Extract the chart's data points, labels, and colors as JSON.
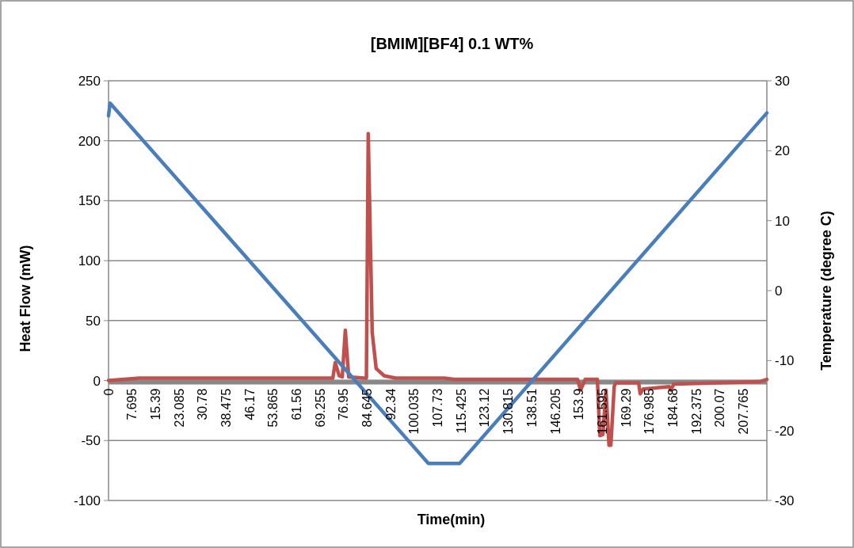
{
  "chart_data": {
    "type": "line",
    "title": "[BMIM][BF4] 0.1 WT%",
    "xlabel": "Time(min)",
    "ylabel": "Heat Flow (mW)",
    "y2label": "Temperature (degree C)",
    "xlim": [
      0,
      215.46
    ],
    "xticks": [
      0,
      7.695,
      15.39,
      23.085,
      30.78,
      38.475,
      46.17,
      53.865,
      61.56,
      69.255,
      76.95,
      84.645,
      92.34,
      100.035,
      107.73,
      115.425,
      123.12,
      130.815,
      138.51,
      146.205,
      153.9,
      161.595,
      169.29,
      176.985,
      184.68,
      192.375,
      200.07,
      207.765
    ],
    "ylim": [
      -100,
      250
    ],
    "yticks": [
      -100,
      -50,
      0,
      50,
      100,
      150,
      200,
      250
    ],
    "y2lim": [
      -30,
      30
    ],
    "y2ticks": [
      -30,
      -20,
      -10,
      0,
      10,
      20,
      30
    ],
    "grid": "y",
    "marker": "none",
    "line_style": "solid",
    "series": [
      {
        "color": "#c0504d",
        "x": [
          0,
          5,
          10,
          40,
          73.4,
          74.2,
          75.5,
          76.5,
          77.5,
          78.6,
          83.7,
          84.4,
          85.0,
          86.3,
          87.6,
          90.2,
          94,
          110,
          113,
          130,
          153.5,
          154.5,
          156,
          160,
          160.8,
          161.8,
          162.8,
          163.8,
          164.4,
          165.5,
          166,
          173.5,
          174,
          175,
          183.5,
          184,
          185,
          213,
          215.46
        ],
        "values": [
          0,
          1,
          2,
          2,
          2,
          15,
          4,
          3,
          42,
          3,
          2,
          2,
          206,
          40,
          10,
          4,
          2,
          2,
          1,
          1,
          1,
          -8,
          1,
          1,
          -46,
          -45,
          -8,
          -54,
          -54,
          -5,
          -2,
          -2,
          -11,
          -7,
          -5,
          -8,
          -3,
          -1,
          1
        ]
      },
      {
        "color": "#4a7ebb",
        "axis": "y2",
        "x": [
          0,
          0.5,
          104.7,
          114.9,
          215.46
        ],
        "values": [
          25,
          26.8,
          -24.7,
          -24.7,
          25.4
        ]
      }
    ]
  }
}
